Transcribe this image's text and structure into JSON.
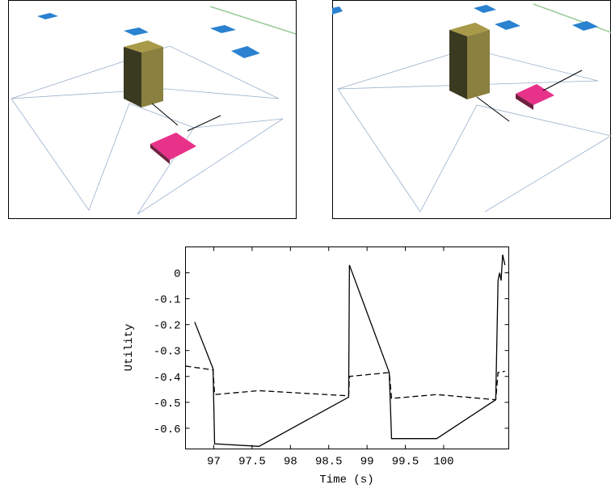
{
  "chart_data": {
    "type": "line",
    "x_label": "Time (s)",
    "y_label": "Utility",
    "xlim": [
      96.63,
      100.85
    ],
    "ylim": [
      -0.68,
      0.1
    ],
    "xticks": [
      97,
      97.5,
      98,
      98.5,
      99,
      99.5,
      100
    ],
    "yticks": [
      0,
      -0.1,
      -0.2,
      -0.3,
      -0.4,
      -0.5,
      -0.6
    ],
    "series": [
      {
        "color": "#000000",
        "dash": false,
        "x": [
          96.75,
          96.99,
          97.01,
          97.59,
          98.76,
          98.77,
          99.29,
          99.32,
          99.91,
          100.68,
          100.71,
          100.73,
          100.75,
          100.77,
          100.8
        ],
        "values": [
          -0.19,
          -0.37,
          -0.66,
          -0.67,
          -0.48,
          0.03,
          -0.385,
          -0.64,
          -0.64,
          -0.49,
          -0.03,
          0.0,
          -0.03,
          0.07,
          0.03
        ]
      },
      {
        "color": "#000000",
        "dash": true,
        "x": [
          96.63,
          96.99,
          97.01,
          97.59,
          98.76,
          98.77,
          99.29,
          99.32,
          99.91,
          100.68,
          100.71,
          100.8
        ],
        "values": [
          -0.36,
          -0.375,
          -0.47,
          -0.455,
          -0.475,
          -0.4,
          -0.385,
          -0.485,
          -0.47,
          -0.49,
          -0.385,
          -0.38
        ]
      }
    ]
  }
}
